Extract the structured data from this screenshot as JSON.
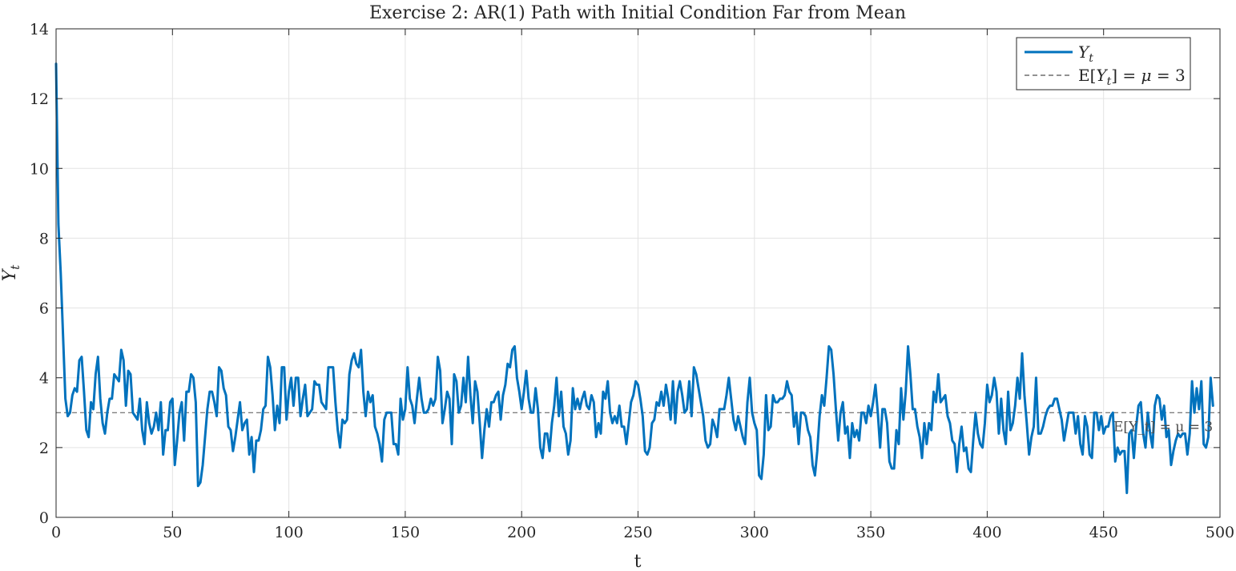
{
  "chart_data": {
    "type": "line",
    "title": "Exercise 2: AR(1) Path with Initial Condition Far from Mean",
    "xlabel": "t",
    "ylabel": "Y_t",
    "xlim": [
      0,
      500
    ],
    "ylim": [
      0,
      14
    ],
    "xticks": [
      0,
      50,
      100,
      150,
      200,
      250,
      300,
      350,
      400,
      450,
      500
    ],
    "yticks": [
      0,
      2,
      4,
      6,
      8,
      10,
      12,
      14
    ],
    "grid": true,
    "legend_position": "top-right",
    "series": [
      {
        "name": "Y_t",
        "color": "#0072BD",
        "style": "solid",
        "x_start": 0,
        "x_step": 1,
        "values": [
          13.0,
          8.4,
          7.0,
          5.2,
          3.4,
          2.9,
          3.0,
          3.5,
          3.7,
          3.6,
          4.5,
          4.6,
          3.6,
          2.5,
          2.3,
          3.3,
          3.1,
          4.1,
          4.6,
          3.4,
          2.7,
          2.4,
          3.0,
          3.4,
          3.4,
          4.1,
          4.0,
          3.9,
          4.8,
          4.5,
          3.2,
          4.2,
          4.1,
          3.0,
          2.9,
          2.8,
          3.4,
          2.5,
          2.1,
          3.3,
          2.7,
          2.4,
          2.6,
          3.0,
          2.5,
          3.3,
          1.8,
          2.5,
          2.5,
          3.3,
          3.4,
          1.5,
          2.2,
          3.0,
          3.3,
          2.2,
          3.6,
          3.6,
          4.1,
          4.0,
          3.3,
          0.9,
          1.0,
          1.5,
          2.3,
          3.1,
          3.6,
          3.6,
          3.3,
          2.9,
          4.3,
          4.2,
          3.7,
          3.5,
          2.6,
          2.5,
          1.9,
          2.3,
          2.8,
          3.3,
          2.5,
          2.7,
          2.8,
          1.8,
          2.3,
          1.3,
          2.2,
          2.2,
          2.5,
          3.1,
          3.2,
          4.6,
          4.3,
          3.5,
          2.5,
          3.2,
          2.7,
          4.3,
          4.3,
          2.8,
          3.6,
          4.0,
          3.2,
          4.0,
          4.0,
          2.9,
          3.4,
          3.8,
          2.9,
          3.0,
          3.1,
          3.9,
          3.8,
          3.8,
          3.3,
          3.2,
          3.1,
          4.3,
          4.3,
          4.3,
          3.3,
          2.5,
          2.0,
          2.8,
          2.7,
          2.8,
          4.1,
          4.5,
          4.7,
          4.4,
          4.3,
          4.8,
          3.6,
          2.9,
          3.6,
          3.3,
          3.5,
          2.6,
          2.4,
          2.1,
          1.6,
          2.8,
          3.0,
          3.0,
          3.0,
          2.1,
          2.1,
          1.8,
          3.4,
          2.8,
          3.1,
          4.3,
          3.4,
          3.2,
          2.7,
          3.4,
          4.0,
          3.4,
          3.0,
          3.0,
          3.1,
          3.4,
          3.2,
          3.4,
          4.6,
          4.2,
          2.7,
          3.1,
          3.6,
          3.4,
          2.1,
          4.1,
          3.9,
          3.0,
          3.2,
          4.0,
          3.3,
          4.6,
          3.5,
          2.7,
          3.9,
          3.6,
          2.7,
          1.7,
          2.5,
          3.1,
          2.6,
          3.3,
          3.3,
          3.5,
          3.6,
          2.8,
          3.5,
          3.8,
          4.4,
          4.3,
          4.8,
          4.9,
          4.0,
          3.6,
          3.1,
          3.6,
          4.2,
          3.4,
          3.0,
          3.0,
          3.7,
          3.1,
          2.0,
          1.7,
          2.4,
          2.4,
          1.9,
          2.7,
          3.2,
          4.0,
          2.9,
          3.6,
          2.6,
          2.4,
          1.8,
          2.2,
          3.7,
          3.1,
          3.4,
          3.1,
          3.4,
          3.6,
          3.2,
          3.1,
          3.5,
          3.3,
          2.3,
          2.7,
          2.4,
          3.6,
          3.4,
          3.9,
          3.0,
          2.7,
          2.9,
          2.7,
          3.2,
          2.6,
          2.6,
          2.1,
          2.7,
          3.3,
          3.5,
          3.9,
          3.8,
          3.4,
          2.9,
          1.9,
          1.8,
          2.0,
          2.7,
          2.8,
          3.3,
          3.2,
          3.6,
          3.2,
          3.8,
          3.4,
          2.8,
          3.9,
          2.7,
          3.6,
          3.9,
          3.5,
          3.0,
          3.1,
          3.9,
          2.9,
          4.3,
          4.1,
          3.7,
          3.3,
          2.9,
          2.2,
          2.0,
          2.1,
          2.8,
          2.6,
          2.3,
          3.1,
          3.1,
          3.1,
          3.5,
          4.0,
          3.4,
          2.8,
          2.5,
          2.9,
          2.6,
          2.3,
          2.1,
          3.3,
          4.0,
          3.0,
          2.7,
          2.5,
          1.2,
          1.1,
          1.8,
          3.5,
          2.5,
          2.6,
          3.5,
          3.3,
          3.3,
          3.4,
          3.4,
          3.5,
          3.9,
          3.6,
          3.5,
          2.6,
          3.0,
          2.1,
          3.0,
          3.0,
          2.9,
          2.5,
          2.3,
          1.5,
          1.2,
          1.9,
          2.9,
          3.5,
          3.2,
          4.0,
          4.9,
          4.8,
          4.1,
          3.1,
          2.2,
          3.0,
          3.3,
          2.4,
          2.6,
          1.7,
          2.7,
          2.3,
          2.5,
          2.2,
          3.0,
          3.0,
          2.7,
          3.2,
          2.9,
          3.3,
          3.8,
          3.0,
          2.0,
          3.1,
          3.1,
          2.7,
          1.6,
          1.4,
          1.4,
          2.5,
          2.1,
          3.7,
          2.8,
          3.6,
          4.9,
          4.1,
          3.1,
          3.1,
          2.6,
          2.3,
          1.7,
          2.7,
          2.1,
          2.7,
          2.5,
          3.6,
          3.3,
          4.1,
          3.3,
          3.4,
          3.5,
          2.9,
          2.7,
          2.2,
          2.1,
          1.3,
          2.1,
          2.6,
          1.9,
          2.0,
          1.4,
          1.3,
          2.2,
          3.0,
          2.4,
          2.1,
          2.0,
          2.7,
          3.8,
          3.3,
          3.5,
          4.0,
          3.6,
          2.4,
          3.4,
          2.5,
          2.1,
          3.6,
          2.5,
          2.7,
          3.2,
          4.0,
          3.4,
          4.7,
          3.5,
          2.7,
          1.8,
          2.3,
          2.6,
          4.0,
          2.4,
          2.4,
          2.6,
          2.9,
          3.1,
          3.2,
          3.2,
          3.4,
          3.4,
          3.1,
          2.8,
          2.2,
          2.6,
          3.0,
          3.0,
          3.0,
          2.4,
          2.9,
          2.1,
          1.8,
          2.9,
          2.6,
          1.8,
          1.7,
          3.0,
          3.0,
          2.5,
          2.9,
          2.4,
          2.6,
          2.6,
          2.9,
          3.0,
          1.6,
          2.0,
          1.8,
          1.9,
          1.9,
          0.7,
          2.4,
          2.5,
          1.7,
          2.6,
          3.2,
          3.3,
          2.4,
          2.0,
          3.0,
          2.4,
          2.0,
          3.2,
          3.5,
          3.4,
          2.8,
          3.2,
          2.3,
          2.5,
          1.5,
          1.9,
          2.2,
          2.4,
          2.3,
          2.4,
          2.4,
          1.8,
          2.4,
          3.9,
          3.0,
          3.7,
          3.1,
          3.9,
          2.1,
          2.0,
          2.3,
          4.0,
          3.2
        ]
      },
      {
        "name": "E[Y_t] = μ = 3",
        "color": "#262626",
        "style": "dashed",
        "constant": 3
      }
    ],
    "annotations": [
      "E[Y_t] = μ = 3"
    ]
  }
}
